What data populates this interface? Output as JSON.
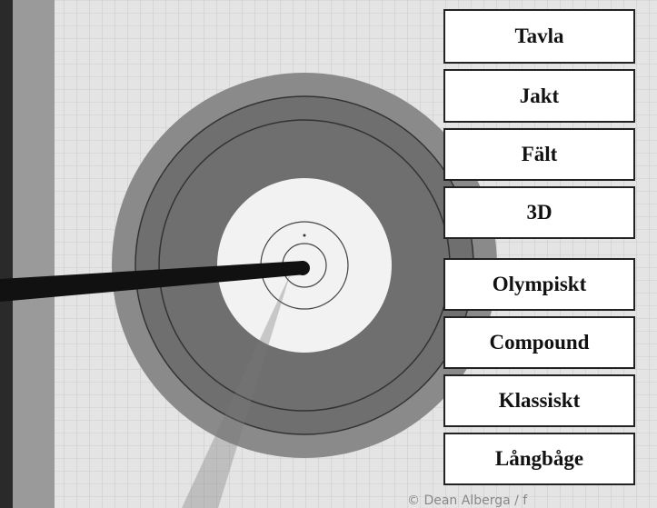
{
  "menu": {
    "buttons": [
      "Tavla",
      "Jakt",
      "Fält",
      "3D",
      "Olympiskt",
      "Compound",
      "Klassiskt",
      "Långbåge"
    ]
  },
  "photo": {
    "credit": "© Dean Alberga / f"
  }
}
